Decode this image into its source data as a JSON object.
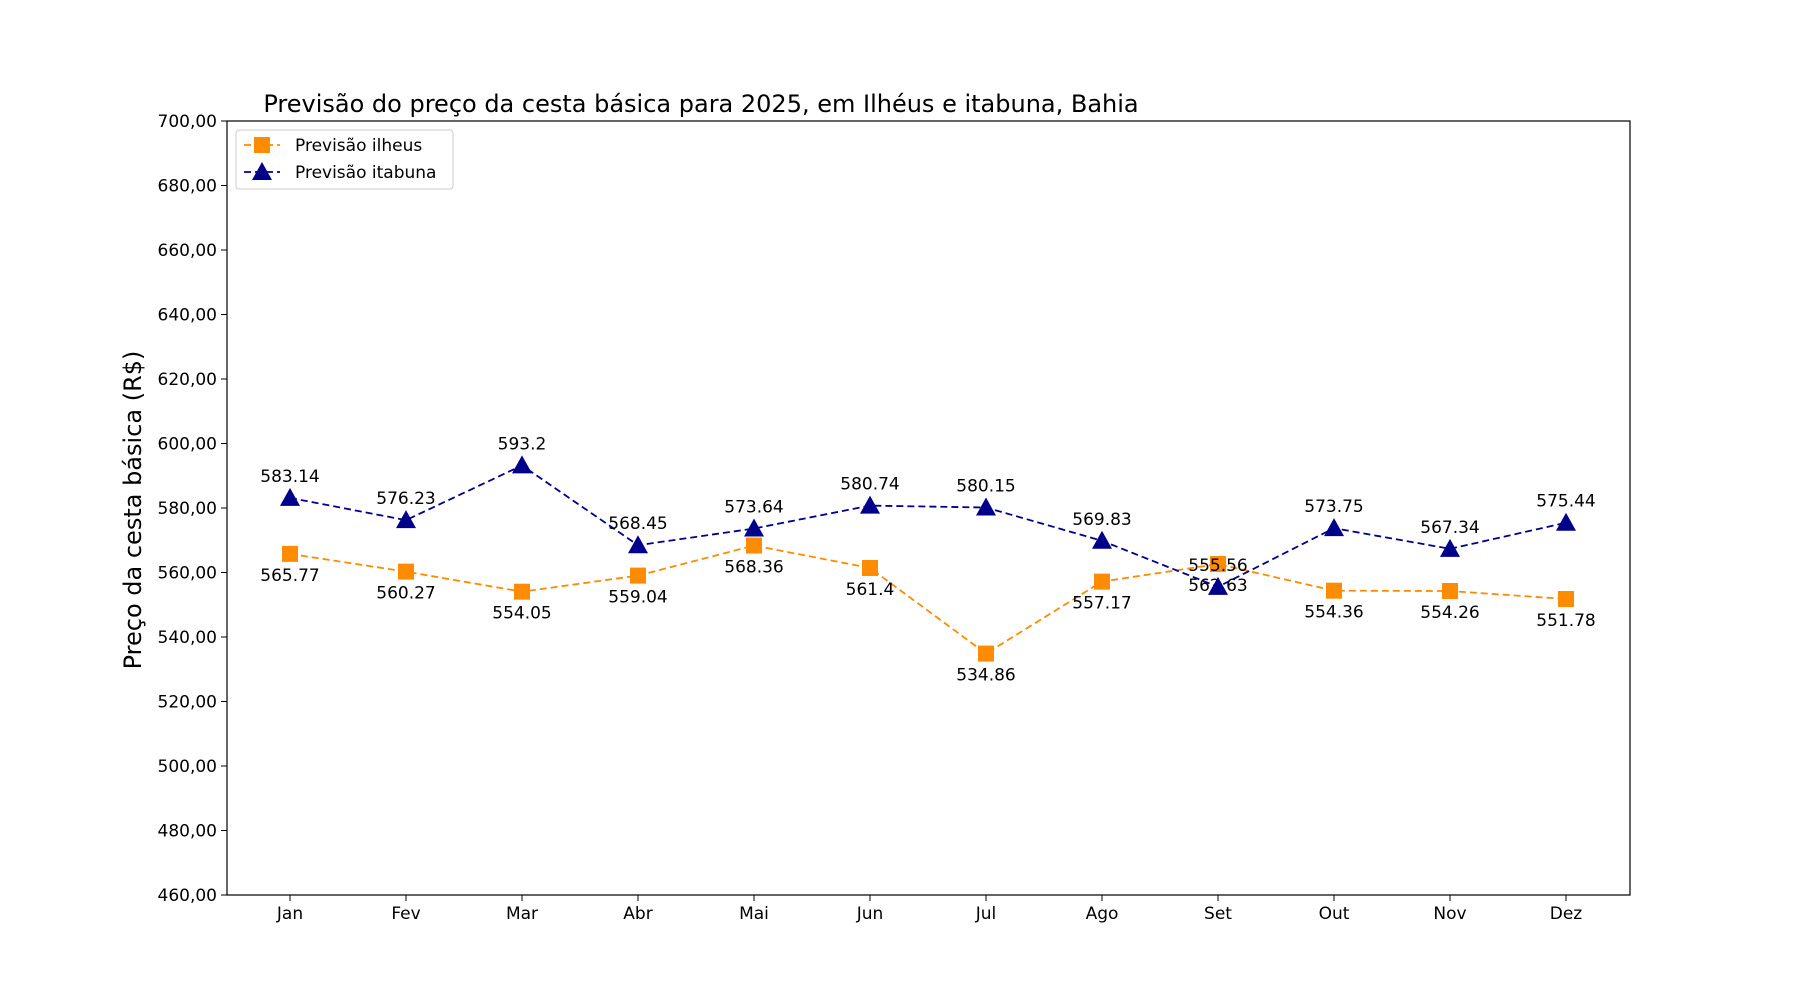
{
  "chart_data": {
    "type": "line",
    "title": "Previsão do preço da cesta básica para 2025, em Ilhéus e itabuna, Bahia",
    "xlabel": "",
    "ylabel": "Preço da cesta básica (R$)",
    "categories": [
      "Jan",
      "Fev",
      "Mar",
      "Abr",
      "Mai",
      "Jun",
      "Jul",
      "Ago",
      "Set",
      "Out",
      "Nov",
      "Dez"
    ],
    "ylim": [
      460,
      700
    ],
    "yticks": [
      "460,00",
      "480,00",
      "500,00",
      "520,00",
      "540,00",
      "560,00",
      "580,00",
      "600,00",
      "620,00",
      "640,00",
      "660,00",
      "680,00",
      "700,00"
    ],
    "grid": false,
    "legend_position": "top-left",
    "series": [
      {
        "name": "Previsão ilheus",
        "color": "#ff8c00",
        "marker": "square",
        "line_style": "dashed",
        "label_position": "below",
        "values": [
          565.77,
          560.27,
          554.05,
          559.04,
          568.36,
          561.4,
          534.86,
          557.17,
          562.63,
          554.36,
          554.26,
          551.78
        ],
        "labels": [
          "565.77",
          "560.27",
          "554.05",
          "559.04",
          "568.36",
          "561.4",
          "534.86",
          "557.17",
          "562.63",
          "554.36",
          "554.26",
          "551.78"
        ]
      },
      {
        "name": "Previsão itabuna",
        "color": "#00008b",
        "marker": "triangle",
        "line_style": "dashed",
        "label_position": "above",
        "values": [
          583.14,
          576.23,
          593.2,
          568.45,
          573.64,
          580.74,
          580.15,
          569.83,
          555.56,
          573.75,
          567.34,
          575.44
        ],
        "labels": [
          "583.14",
          "576.23",
          "593.2",
          "568.45",
          "573.64",
          "580.74",
          "580.15",
          "569.83",
          "555.56",
          "573.75",
          "567.34",
          "575.44"
        ]
      }
    ]
  }
}
